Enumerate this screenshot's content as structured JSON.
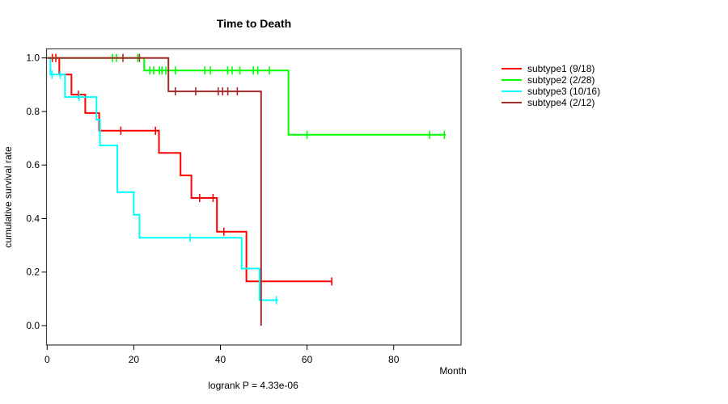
{
  "chart_data": {
    "type": "line",
    "subtype": "kaplan-meier-step-curves",
    "title": "Time to Death",
    "xlabel": "Month",
    "ylabel": "cumulative survival rate",
    "footnote": "logrank P = 4.33e-06",
    "xlim": [
      0,
      95
    ],
    "ylim": [
      0.0,
      1.0
    ],
    "x_ticks": [
      0,
      20,
      40,
      60,
      80
    ],
    "y_ticks": [
      "0.0",
      "0.2",
      "0.4",
      "0.6",
      "0.8",
      "1.0"
    ],
    "grid": false,
    "legend_position": "right-outside",
    "series": [
      {
        "name": "subtype1",
        "label": "subtype1 (9/18)",
        "color": "#FF0000",
        "steps": [
          [
            0,
            1
          ],
          [
            2.8,
            1
          ],
          [
            2.8,
            0.938
          ],
          [
            5.6,
            0.938
          ],
          [
            5.6,
            0.863
          ],
          [
            8.8,
            0.863
          ],
          [
            8.8,
            0.794
          ],
          [
            12,
            0.794
          ],
          [
            12,
            0.728
          ],
          [
            25.8,
            0.728
          ],
          [
            25.8,
            0.645
          ],
          [
            30.8,
            0.645
          ],
          [
            30.8,
            0.561
          ],
          [
            33.3,
            0.561
          ],
          [
            33.3,
            0.477
          ],
          [
            39.2,
            0.477
          ],
          [
            39.2,
            0.351
          ],
          [
            46,
            0.351
          ],
          [
            46,
            0.165
          ],
          [
            65.7,
            0.165
          ]
        ],
        "censors": [
          [
            1.2,
            1
          ],
          [
            2.0,
            1
          ],
          [
            7.2,
            0.863
          ],
          [
            17,
            0.728
          ],
          [
            25,
            0.728
          ],
          [
            35.2,
            0.477
          ],
          [
            38.3,
            0.477
          ],
          [
            40.8,
            0.351
          ],
          [
            65.7,
            0.165
          ]
        ]
      },
      {
        "name": "subtype2",
        "label": "subtype2 (2/28)",
        "color": "#00FF00",
        "steps": [
          [
            0,
            1
          ],
          [
            22.4,
            1
          ],
          [
            22.4,
            0.953
          ],
          [
            55.7,
            0.953
          ],
          [
            55.7,
            0.713
          ],
          [
            92,
            0.713
          ]
        ],
        "censors": [
          [
            15.1,
            1
          ],
          [
            16.0,
            1
          ],
          [
            20.9,
            1
          ],
          [
            23.7,
            0.953
          ],
          [
            24.6,
            0.953
          ],
          [
            25.9,
            0.953
          ],
          [
            26.5,
            0.953
          ],
          [
            27.4,
            0.953
          ],
          [
            29.6,
            0.953
          ],
          [
            36.4,
            0.953
          ],
          [
            37.7,
            0.953
          ],
          [
            41.7,
            0.953
          ],
          [
            42.7,
            0.953
          ],
          [
            44.5,
            0.953
          ],
          [
            47.6,
            0.953
          ],
          [
            48.6,
            0.953
          ],
          [
            51.3,
            0.953
          ],
          [
            60,
            0.713
          ],
          [
            88.3,
            0.713
          ],
          [
            91.7,
            0.713
          ]
        ]
      },
      {
        "name": "subtype3",
        "label": "subtype3 (10/16)",
        "color": "#00FFFF",
        "steps": [
          [
            0,
            1
          ],
          [
            0.75,
            1
          ],
          [
            0.75,
            0.938
          ],
          [
            4.1,
            0.938
          ],
          [
            4.1,
            0.854
          ],
          [
            11.4,
            0.854
          ],
          [
            11.4,
            0.769
          ],
          [
            12.2,
            0.769
          ],
          [
            12.2,
            0.673
          ],
          [
            16.2,
            0.673
          ],
          [
            16.2,
            0.499
          ],
          [
            20,
            0.499
          ],
          [
            20,
            0.414
          ],
          [
            21.3,
            0.414
          ],
          [
            21.3,
            0.328
          ],
          [
            44.9,
            0.328
          ],
          [
            44.9,
            0.213
          ],
          [
            49,
            0.213
          ],
          [
            49,
            0.095
          ],
          [
            53.3,
            0.095
          ]
        ],
        "censors": [
          [
            1.1,
            0.938
          ],
          [
            3.0,
            0.938
          ],
          [
            7.4,
            0.854
          ],
          [
            33,
            0.328
          ],
          [
            52.9,
            0.095
          ]
        ]
      },
      {
        "name": "subtype4",
        "label": "subtype4 (2/12)",
        "color": "#A52A2A",
        "steps": [
          [
            0,
            1
          ],
          [
            28,
            1
          ],
          [
            28,
            0.875
          ],
          [
            49.4,
            0.875
          ],
          [
            49.4,
            0
          ]
        ],
        "censors": [
          [
            17.5,
            1
          ],
          [
            21.3,
            1
          ],
          [
            29.6,
            0.875
          ],
          [
            34.3,
            0.875
          ],
          [
            39.5,
            0.875
          ],
          [
            40.5,
            0.875
          ],
          [
            41.7,
            0.875
          ],
          [
            43.9,
            0.875
          ]
        ]
      }
    ]
  }
}
